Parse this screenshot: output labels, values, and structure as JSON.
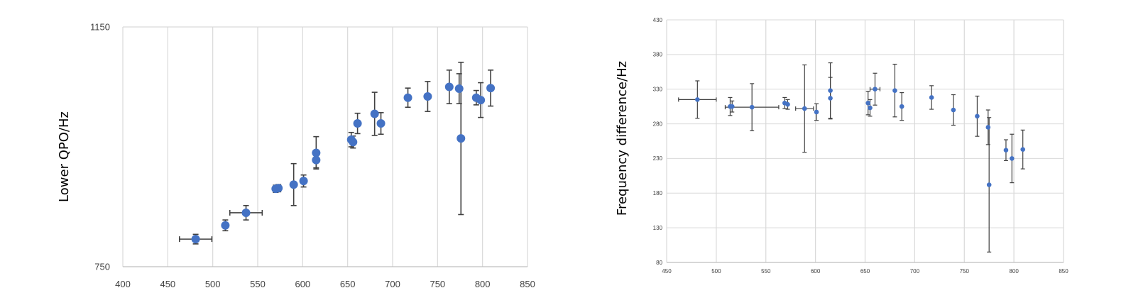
{
  "colors": {
    "marker": "#4472c4",
    "errorbar": "#404040",
    "grid": "#d9d9d9",
    "axis": "#bfbfbf"
  },
  "chart_data": [
    {
      "type": "scatter",
      "ylabel": "Lower  QPO/Hz",
      "xlabel": "",
      "xlim": [
        400,
        850
      ],
      "ylim": [
        750,
        1150
      ],
      "xticks": [
        "400",
        "450",
        "500",
        "550",
        "600",
        "650",
        "700",
        "750",
        "800",
        "850"
      ],
      "yticks": [
        "750",
        "1150"
      ],
      "grid": "vertical",
      "points": [
        {
          "x": 481,
          "y": 796,
          "yerr": 8,
          "xerr": 18
        },
        {
          "x": 514,
          "y": 819,
          "yerr": 9
        },
        {
          "x": 537,
          "y": 840,
          "yerr": 12,
          "xerr": 18
        },
        {
          "x": 570,
          "y": 880,
          "yerr": 6
        },
        {
          "x": 573,
          "y": 881,
          "yerr": 6
        },
        {
          "x": 590,
          "y": 887,
          "yerr": 35
        },
        {
          "x": 601,
          "y": 893,
          "yerr": 10
        },
        {
          "x": 615,
          "y": 928,
          "yerr": 13
        },
        {
          "x": 615,
          "y": 940,
          "yerr": 27
        },
        {
          "x": 654,
          "y": 962,
          "yerr": 12
        },
        {
          "x": 656,
          "y": 958,
          "yerr": 10
        },
        {
          "x": 661,
          "y": 989,
          "yerr": 17
        },
        {
          "x": 680,
          "y": 1005,
          "yerr": 36
        },
        {
          "x": 687,
          "y": 989,
          "yerr": 18
        },
        {
          "x": 717,
          "y": 1032,
          "yerr": 16
        },
        {
          "x": 739,
          "y": 1034,
          "yerr": 25
        },
        {
          "x": 763,
          "y": 1050,
          "yerr": 28
        },
        {
          "x": 774,
          "y": 1047,
          "yerr": 25
        },
        {
          "x": 776,
          "y": 964,
          "yerr": 127
        },
        {
          "x": 793,
          "y": 1032,
          "yerr": 12
        },
        {
          "x": 798,
          "y": 1028,
          "yerr": 29
        },
        {
          "x": 809,
          "y": 1048,
          "yerr": 30
        }
      ]
    },
    {
      "type": "scatter",
      "ylabel": "Frequency  difference/Hz",
      "xlabel": "",
      "xlim": [
        450,
        850
      ],
      "ylim": [
        80,
        430
      ],
      "xticks": [
        "450",
        "500",
        "550",
        "600",
        "650",
        "700",
        "750",
        "800",
        "850"
      ],
      "yticks": [
        "80",
        "130",
        "180",
        "230",
        "280",
        "330",
        "380",
        "430"
      ],
      "grid": "both",
      "points": [
        {
          "x": 481,
          "y": 315,
          "yerr": 27,
          "xerr": 19
        },
        {
          "x": 514,
          "y": 305,
          "yerr": 13
        },
        {
          "x": 516,
          "y": 305,
          "yerr": 8
        },
        {
          "x": 536,
          "y": 304,
          "yerr": 34,
          "xerr": 27
        },
        {
          "x": 569,
          "y": 310,
          "yerr": 8
        },
        {
          "x": 572,
          "y": 308,
          "yerr": 7
        },
        {
          "x": 589,
          "y": 302,
          "yerr": 63,
          "xerr": 9
        },
        {
          "x": 601,
          "y": 297,
          "yerr": 12
        },
        {
          "x": 615,
          "y": 317,
          "yerr": 30
        },
        {
          "x": 615,
          "y": 328,
          "yerr": 40
        },
        {
          "x": 653,
          "y": 310,
          "yerr": 17
        },
        {
          "x": 655,
          "y": 303,
          "yerr": 12
        },
        {
          "x": 660,
          "y": 330,
          "yerr": 23,
          "xerr": 5
        },
        {
          "x": 680,
          "y": 328,
          "yerr": 38
        },
        {
          "x": 687,
          "y": 305,
          "yerr": 20
        },
        {
          "x": 717,
          "y": 318,
          "yerr": 17
        },
        {
          "x": 739,
          "y": 300,
          "yerr": 22
        },
        {
          "x": 763,
          "y": 291,
          "yerr": 29
        },
        {
          "x": 774,
          "y": 275,
          "yerr": 25
        },
        {
          "x": 775,
          "y": 192,
          "yerr": 97
        },
        {
          "x": 792,
          "y": 242,
          "yerr": 15
        },
        {
          "x": 798,
          "y": 230,
          "yerr": 35
        },
        {
          "x": 809,
          "y": 243,
          "yerr": 28
        }
      ]
    }
  ]
}
